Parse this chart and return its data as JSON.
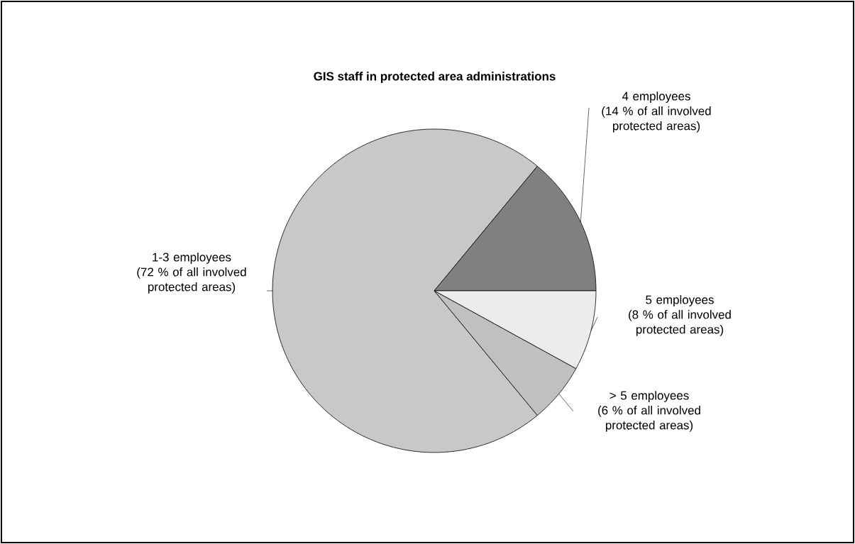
{
  "chart_data": {
    "type": "pie",
    "title": "GIS staff in protected area administrations",
    "categories": [
      "1-3 employees",
      "4 employees",
      "5 employees",
      "> 5 employees"
    ],
    "values": [
      72,
      14,
      8,
      6
    ],
    "value_labels": [
      "(72 % of all involved protected areas)",
      "(14 % of all involved protected areas)",
      "(8 % of all involved protected areas)",
      "(6 % of all involved protected areas)"
    ],
    "colors": [
      "#c8c8c8",
      "#808080",
      "#ececec",
      "#c0c0c0"
    ]
  }
}
